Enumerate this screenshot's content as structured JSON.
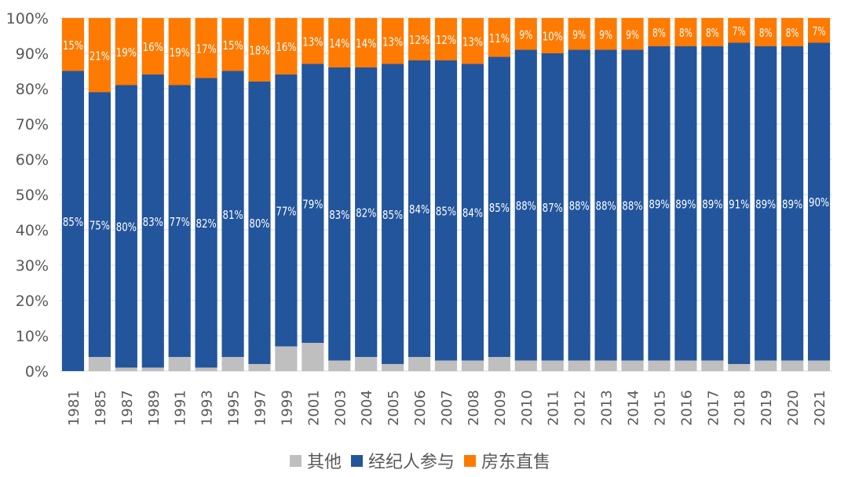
{
  "chart_data": {
    "type": "bar",
    "stacked": true,
    "title": "",
    "xlabel": "",
    "ylabel": "",
    "ylim": [
      0,
      100
    ],
    "yticks": [
      "0%",
      "10%",
      "20%",
      "30%",
      "40%",
      "50%",
      "60%",
      "70%",
      "80%",
      "90%",
      "100%"
    ],
    "grid": true,
    "legend_position": "bottom",
    "categories": [
      "1981",
      "1985",
      "1987",
      "1989",
      "1991",
      "1993",
      "1995",
      "1997",
      "1999",
      "2001",
      "2003",
      "2004",
      "2005",
      "2006",
      "2007",
      "2008",
      "2009",
      "2010",
      "2011",
      "2012",
      "2013",
      "2014",
      "2015",
      "2016",
      "2017",
      "2018",
      "2019",
      "2020",
      "2021"
    ],
    "series": [
      {
        "name": "其他",
        "color": "#BFBFBF",
        "labeled": false,
        "values": [
          0,
          4,
          1,
          1,
          4,
          1,
          4,
          2,
          7,
          8,
          3,
          4,
          2,
          4,
          3,
          3,
          4,
          3,
          3,
          3,
          3,
          3,
          3,
          3,
          3,
          2,
          3,
          3,
          3
        ]
      },
      {
        "name": "经纪人参与",
        "color": "#22559C",
        "labeled": true,
        "values": [
          85,
          75,
          80,
          83,
          77,
          82,
          81,
          80,
          77,
          79,
          83,
          82,
          85,
          84,
          85,
          84,
          85,
          88,
          87,
          88,
          88,
          88,
          89,
          89,
          89,
          91,
          89,
          89,
          90
        ]
      },
      {
        "name": "房东直售",
        "color": "#FF7A00",
        "labeled": true,
        "values": [
          15,
          21,
          19,
          16,
          19,
          17,
          15,
          18,
          16,
          13,
          14,
          14,
          13,
          12,
          12,
          13,
          11,
          9,
          10,
          9,
          9,
          9,
          8,
          8,
          8,
          7,
          8,
          8,
          7
        ]
      }
    ]
  }
}
